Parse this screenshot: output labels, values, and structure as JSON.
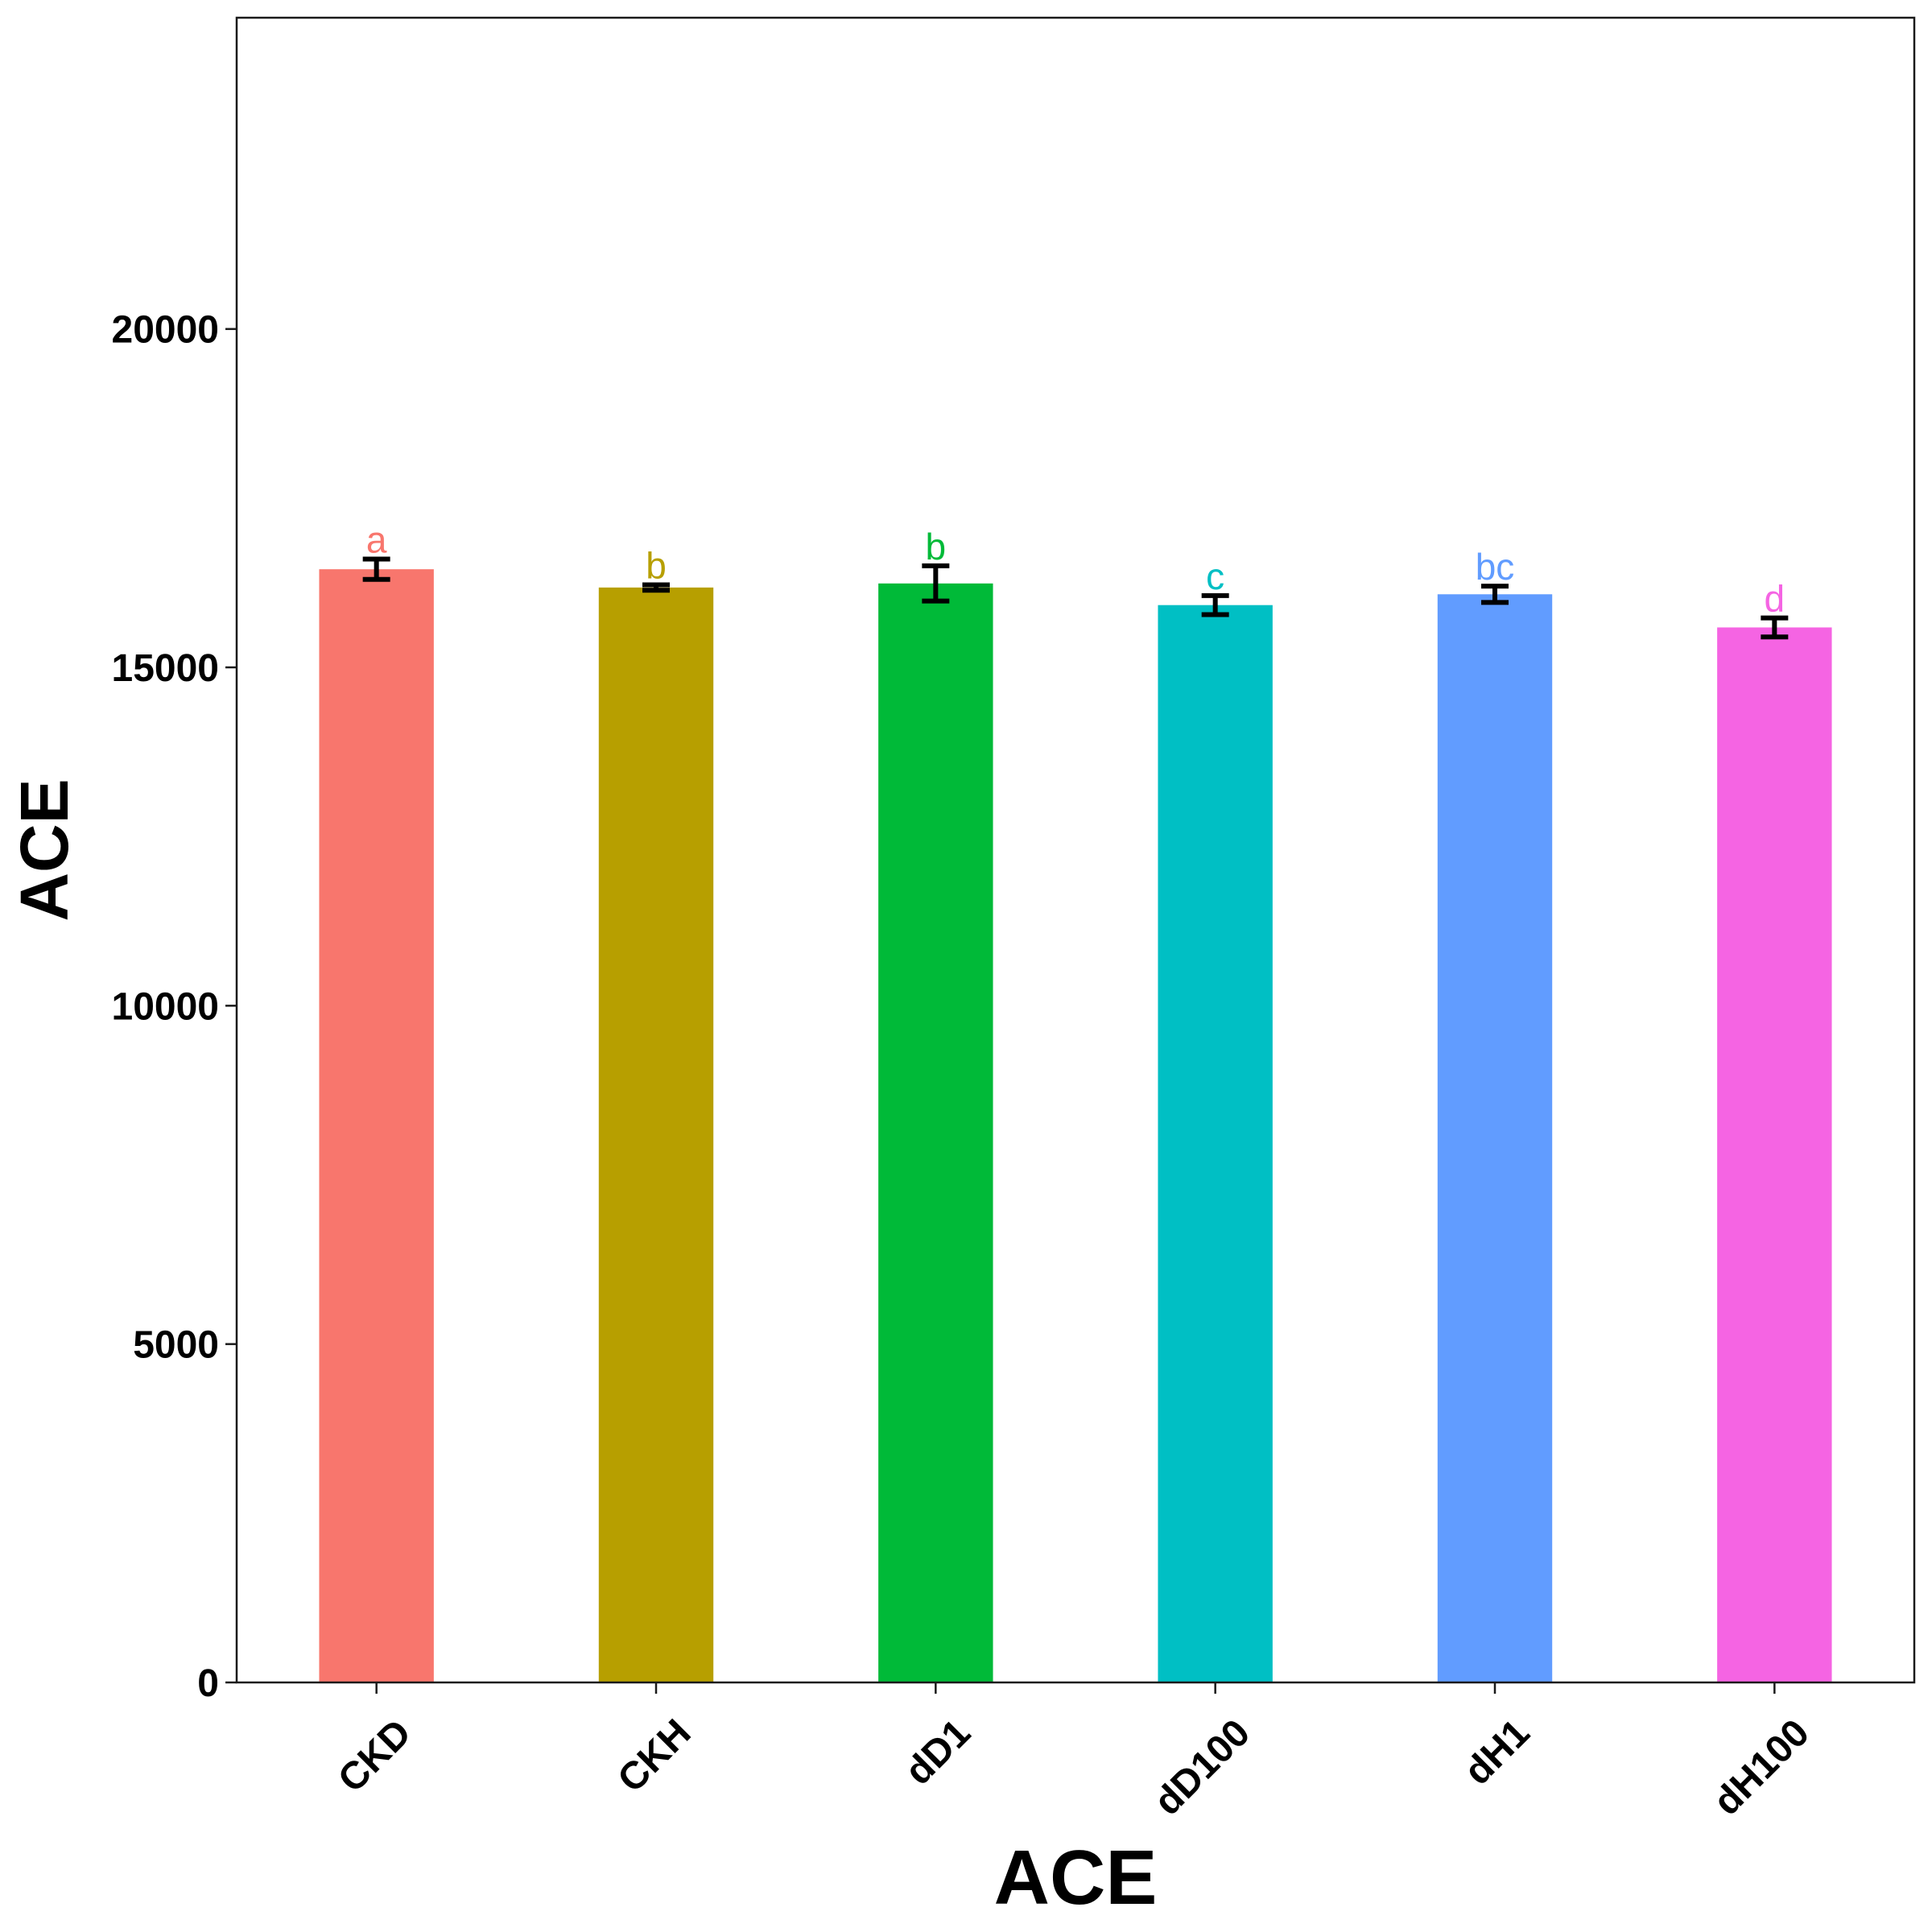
{
  "chart_data": {
    "type": "bar",
    "title": "",
    "xlabel": "ACE",
    "ylabel": "ACE",
    "ylim": [
      0,
      24600
    ],
    "yticks": [
      0,
      5000,
      10000,
      15000,
      20000
    ],
    "ytick_labels": [
      "0",
      "5000",
      "10000",
      "15000",
      "20000"
    ],
    "grid": false,
    "legend": "none",
    "categories": [
      "CKD",
      "CKH",
      "dD1",
      "dD100",
      "dH1",
      "dH100"
    ],
    "values": [
      16450,
      16180,
      16240,
      15920,
      16080,
      15590
    ],
    "errors": [
      150,
      40,
      260,
      140,
      120,
      140
    ],
    "significance": [
      "a",
      "b",
      "b",
      "c",
      "bc",
      "d"
    ],
    "colors": [
      "#F8766D",
      "#B79F00",
      "#00BA38",
      "#00BFC4",
      "#619CFF",
      "#F564E3"
    ]
  }
}
